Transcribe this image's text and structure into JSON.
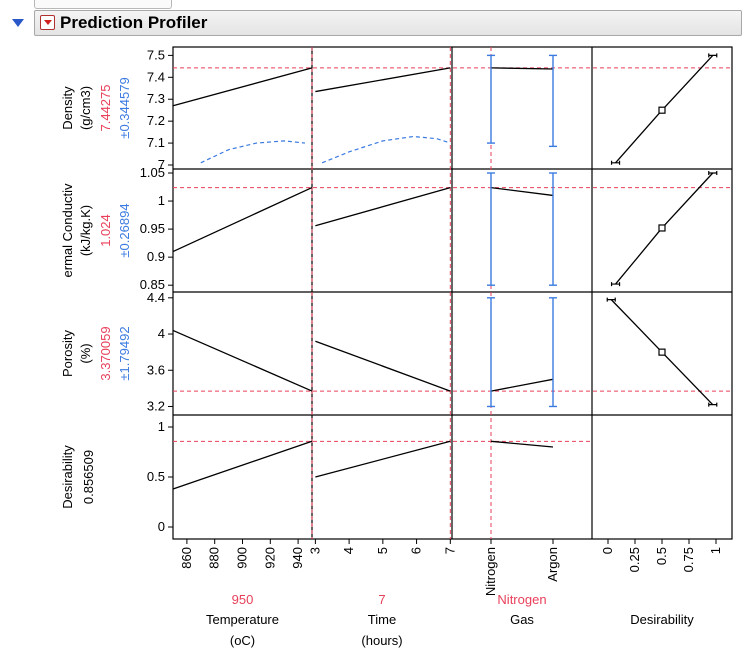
{
  "window": {
    "title": "Prediction Profiler"
  },
  "colors": {
    "prediction": "#e8405a",
    "interval": "#3b7be0",
    "curve": "#000000",
    "reference_line": "#e8405a"
  },
  "icons": [
    "disclosure-triangle-icon",
    "red-triangle-menu-icon"
  ],
  "responses": [
    {
      "name": "Density",
      "unit": "(g/cm3)",
      "value": "7.44275",
      "interval": "±0.344579",
      "ticks": [
        "7.5",
        "7.4",
        "7.3",
        "7.2",
        "7.1",
        "7"
      ]
    },
    {
      "name": "ermal Conductiv",
      "unit": "(kJ/kg.K)",
      "value": "1.024",
      "interval": "±0.26894",
      "ticks": [
        "1.05",
        "1",
        "0.95",
        "0.9",
        "0.85"
      ]
    },
    {
      "name": "Porosity",
      "unit": "(%)",
      "value": "3.370059",
      "interval": "±1.79492",
      "ticks": [
        "4.4",
        "4",
        "3.6",
        "3.2"
      ]
    },
    {
      "name": "Desirability",
      "unit": "",
      "value": "0.856509",
      "interval": "",
      "ticks": [
        "1",
        "0.5",
        "0"
      ]
    }
  ],
  "factors": [
    {
      "name": "Temperature",
      "unit": "(oC)",
      "current": "950",
      "ticks": [
        "860",
        "880",
        "900",
        "920",
        "940"
      ]
    },
    {
      "name": "Time",
      "unit": "(hours)",
      "current": "7",
      "ticks": [
        "3",
        "4",
        "5",
        "6",
        "7"
      ]
    },
    {
      "name": "Gas",
      "unit": "",
      "current": "Nitrogen",
      "ticks": [
        "Nitrogen",
        "Argon"
      ]
    },
    {
      "name": "Desirability",
      "unit": "",
      "current": "",
      "ticks": [
        "0",
        "0.25",
        "0.5",
        "0.75",
        "1"
      ]
    }
  ],
  "chart_data": {
    "type": "line",
    "responses": {
      "Density": {
        "ylim": [
          7.0,
          7.52
        ],
        "current": 7.44275,
        "interval": 0.344579
      },
      "Thermal Conductivity": {
        "ylim": [
          0.845,
          1.05
        ],
        "current": 1.024,
        "interval": 0.26894
      },
      "Porosity": {
        "ylim": [
          3.15,
          4.42
        ],
        "current": 3.370059,
        "interval": 1.79492
      },
      "Desirability": {
        "ylim": [
          -0.08,
          1.08
        ],
        "current": 0.856509
      }
    },
    "factors": {
      "Temperature": {
        "xlim": [
          850,
          950
        ],
        "current": 950
      },
      "Time": {
        "xlim": [
          2.9,
          7.05
        ],
        "current": 7
      },
      "Gas": {
        "levels": [
          "Nitrogen",
          "Argon"
        ],
        "current": "Nitrogen"
      }
    },
    "profiles": {
      "Density": {
        "Temperature": {
          "x": [
            850,
            950
          ],
          "y": [
            7.27,
            7.443
          ],
          "ci_lower": {
            "x": [
              870,
              890,
              910,
              930,
              945
            ],
            "y": [
              7.01,
              7.07,
              7.1,
              7.11,
              7.1
            ]
          }
        },
        "Time": {
          "x": [
            3,
            7
          ],
          "y": [
            7.335,
            7.443
          ],
          "ci_lower": {
            "x": [
              3.2,
              4,
              5,
              5.9,
              6.6,
              7
            ],
            "y": [
              7.01,
              7.06,
              7.11,
              7.13,
              7.12,
              7.1
            ]
          }
        },
        "Gas": {
          "x": [
            "Nitrogen",
            "Argon"
          ],
          "y": [
            7.443,
            7.438
          ],
          "ci": [
            [
              7.1,
              7.5
            ],
            [
              7.085,
              7.5
            ]
          ]
        },
        "Desirability": {
          "x": [
            0.07,
            0.5,
            0.97
          ],
          "y": [
            7.01,
            7.25,
            7.5
          ]
        }
      },
      "Thermal Conductivity": {
        "Temperature": {
          "x": [
            850,
            950
          ],
          "y": [
            0.91,
            1.024
          ]
        },
        "Time": {
          "x": [
            3,
            7
          ],
          "y": [
            0.956,
            1.024
          ]
        },
        "Gas": {
          "x": [
            "Nitrogen",
            "Argon"
          ],
          "y": [
            1.024,
            1.01
          ],
          "ci": [
            [
              0.85,
              1.05
            ],
            [
              0.85,
              1.05
            ]
          ]
        },
        "Desirability": {
          "x": [
            0.07,
            0.5,
            0.97
          ],
          "y": [
            0.852,
            0.952,
            1.05
          ]
        }
      },
      "Porosity": {
        "Temperature": {
          "x": [
            850,
            950
          ],
          "y": [
            4.04,
            3.37
          ]
        },
        "Time": {
          "x": [
            3,
            7
          ],
          "y": [
            3.92,
            3.37
          ]
        },
        "Gas": {
          "x": [
            "Nitrogen",
            "Argon"
          ],
          "y": [
            3.37,
            3.5
          ],
          "ci": [
            [
              3.2,
              4.4
            ],
            [
              3.2,
              4.4
            ]
          ]
        },
        "Desirability": {
          "x": [
            0.03,
            0.5,
            0.97
          ],
          "y": [
            4.38,
            3.8,
            3.22
          ]
        }
      },
      "Desirability": {
        "Temperature": {
          "x": [
            850,
            950
          ],
          "y": [
            0.38,
            0.857
          ]
        },
        "Time": {
          "x": [
            3,
            7
          ],
          "y": [
            0.5,
            0.857
          ]
        },
        "Gas": {
          "x": [
            "Nitrogen",
            "Argon"
          ],
          "y": [
            0.857,
            0.8
          ]
        }
      }
    },
    "grid": false
  }
}
